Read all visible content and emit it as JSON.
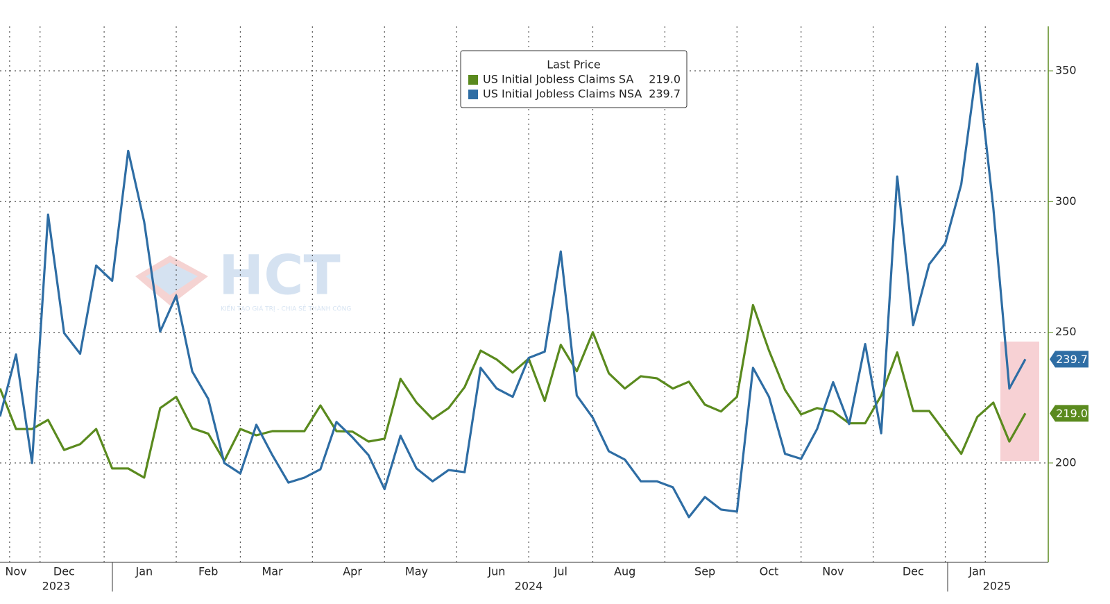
{
  "chart_data": {
    "type": "line",
    "legend_title": "Last Price",
    "watermark": {
      "logo": "HCT",
      "tagline": "KIẾN TẠO GIÁ TRỊ - CHIA SẺ THÀNH CÔNG"
    },
    "categories": [
      null,
      "Nov",
      null,
      null,
      "Dec",
      null,
      null,
      null,
      null,
      "Jan",
      null,
      null,
      null,
      "Feb",
      null,
      null,
      null,
      "Mar",
      null,
      null,
      null,
      null,
      "Apr",
      null,
      null,
      null,
      "May",
      null,
      null,
      null,
      null,
      "Jun",
      null,
      null,
      null,
      "Jul",
      null,
      null,
      null,
      "Aug",
      null,
      null,
      null,
      null,
      "Sep",
      null,
      null,
      null,
      "Oct",
      null,
      null,
      null,
      "Nov",
      null,
      null,
      null,
      null,
      "Dec",
      null,
      null,
      null,
      "Jan",
      null,
      null,
      null
    ],
    "years": [
      "2023",
      "2024",
      "2025"
    ],
    "series": [
      {
        "name": "US Initial Jobless Claims SA",
        "color": "#5a8a1e",
        "last_label": "219.0",
        "values": [
          228.5,
          213,
          213,
          216.5,
          205,
          207.2,
          213,
          197.9,
          197.9,
          194.4,
          221,
          225.3,
          213.3,
          211.2,
          200.8,
          213,
          210.6,
          212.2,
          212.2,
          212.2,
          222,
          212.2,
          212,
          208.2,
          209.3,
          232.2,
          223.1,
          216.8,
          221,
          229,
          243,
          239.6,
          234.6,
          239.9,
          223.7,
          245.2,
          235.1,
          250,
          234.3,
          228.5,
          233.2,
          232.4,
          228.5,
          231.1,
          222.3,
          219.7,
          225.3,
          260.4,
          243,
          227.9,
          218.6,
          221,
          219.7,
          215.2,
          215.2,
          225.8,
          242.3,
          219.9,
          219.9,
          211.7,
          203.5,
          217.6,
          223.1,
          208.2,
          219
        ]
      },
      {
        "name": "US Initial Jobless Claims NSA",
        "color": "#2e6da4",
        "last_label": "239.7",
        "values": [
          217.8,
          241.5,
          200,
          295,
          249.7,
          241.8,
          275.5,
          269.7,
          319.4,
          292.3,
          250.3,
          264,
          235,
          224.5,
          200,
          196,
          214.6,
          203,
          192.5,
          194.4,
          197.6,
          215.7,
          209.8,
          203,
          190,
          210.4,
          197.9,
          193,
          197.3,
          196.5,
          236.4,
          228.5,
          225.3,
          240.2,
          242.6,
          280.9,
          225.8,
          217.3,
          204.5,
          201.3,
          193,
          193,
          190.7,
          179.3,
          187,
          182.2,
          181.4,
          236.4,
          225.3,
          203.5,
          201.6,
          213,
          230.9,
          214.9,
          245.5,
          211.4,
          309.6,
          252.7,
          276,
          284,
          306.6,
          352.7,
          297.6,
          228.5,
          239.7
        ]
      }
    ],
    "ylim": [
      162,
      367
    ],
    "yticks": [
      200,
      250,
      300,
      350
    ],
    "grid": true
  }
}
